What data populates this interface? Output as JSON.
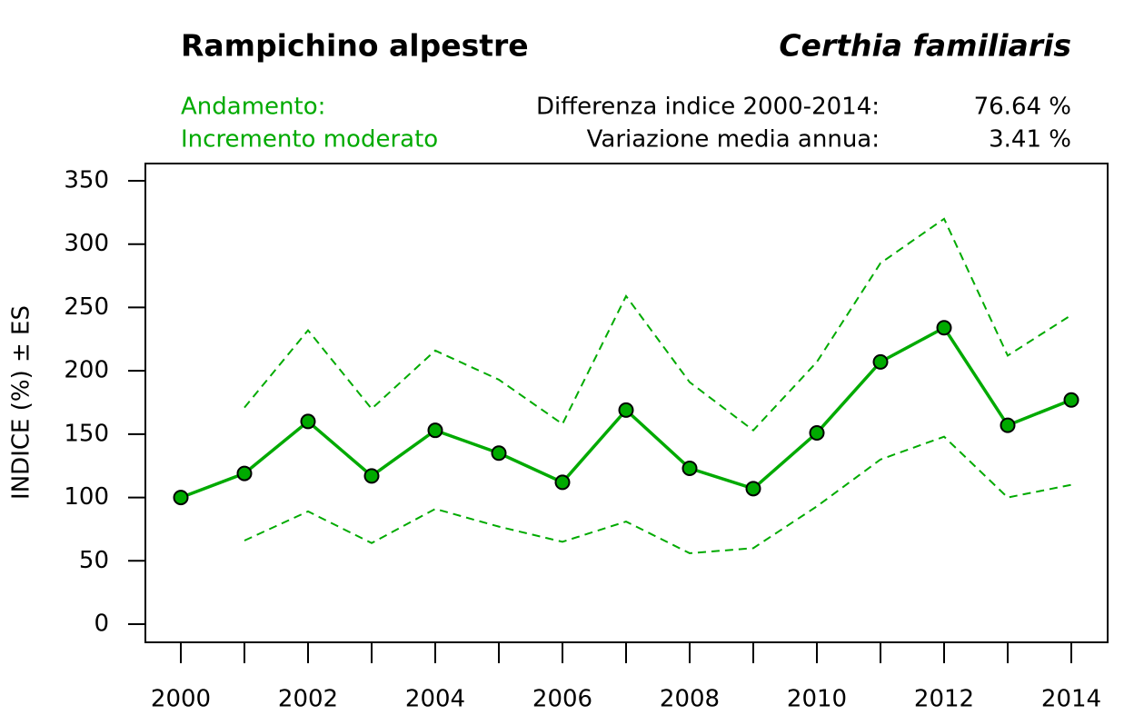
{
  "chart_data": {
    "type": "line",
    "title": "Rampichino alpestre",
    "subtitle": "Certhia familiaris",
    "trend_label": "Andamento:",
    "trend": "Incremento moderato",
    "stats": [
      {
        "label": "Differenza indice 2000-2014:",
        "value": "76.64 %"
      },
      {
        "label": "Variazione media annua:",
        "value": "3.41 %"
      }
    ],
    "y_label": "INDICE (%) ± ES",
    "categories": [
      "2000",
      null,
      "2002",
      null,
      "2004",
      null,
      "2006",
      null,
      "2008",
      null,
      "2010",
      null,
      "2012",
      null,
      "2014"
    ],
    "series": [
      {
        "color": "#00aa00",
        "style": "solid",
        "markers": true,
        "values": [
          100,
          119,
          160,
          117,
          153,
          135,
          112,
          169,
          123,
          107,
          151,
          207,
          234,
          157,
          177
        ]
      },
      {
        "color": "#00aa00",
        "style": "dashed",
        "markers": false,
        "values": [
          null,
          171,
          232,
          170,
          216,
          193,
          158,
          259,
          191,
          153,
          207,
          285,
          320,
          212,
          244
        ]
      },
      {
        "color": "#00aa00",
        "style": "dashed",
        "markers": false,
        "values": [
          null,
          66,
          89,
          64,
          91,
          77,
          65,
          81,
          56,
          60,
          93,
          130,
          148,
          100,
          110
        ]
      }
    ],
    "ylim": [
      -14.34,
      363.63
    ],
    "yticks": [
      0,
      50,
      100,
      150,
      200,
      250,
      300,
      350
    ],
    "grid": false
  }
}
